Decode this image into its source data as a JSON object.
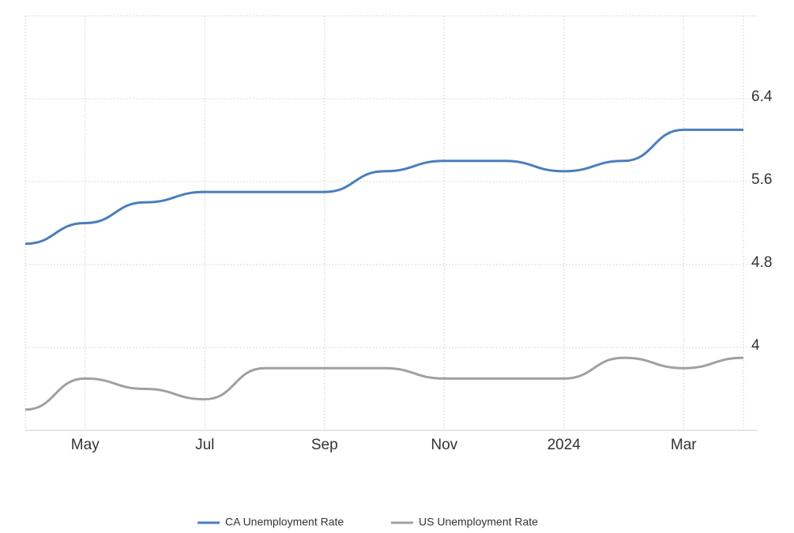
{
  "chart_data": {
    "type": "line",
    "categories": [
      null,
      "May",
      null,
      "Jul",
      null,
      "Sep",
      null,
      "Nov",
      null,
      "2024",
      null,
      "Mar",
      null
    ],
    "series": [
      {
        "name": "CA Unemployment Rate",
        "color": "#4a7ebb",
        "values": [
          5.0,
          5.2,
          5.4,
          5.5,
          5.5,
          5.5,
          5.7,
          5.8,
          5.8,
          5.7,
          5.8,
          6.1,
          6.1
        ]
      },
      {
        "name": "US Unemployment Rate",
        "color": "#a0a0a0",
        "values": [
          3.4,
          3.7,
          3.6,
          3.5,
          3.8,
          3.8,
          3.8,
          3.7,
          3.7,
          3.7,
          3.9,
          3.8,
          3.9
        ]
      }
    ],
    "ylim": [
      3.2,
      7.2
    ],
    "yticks": [
      4,
      4.8,
      5.6,
      6.4
    ],
    "grid": true
  }
}
